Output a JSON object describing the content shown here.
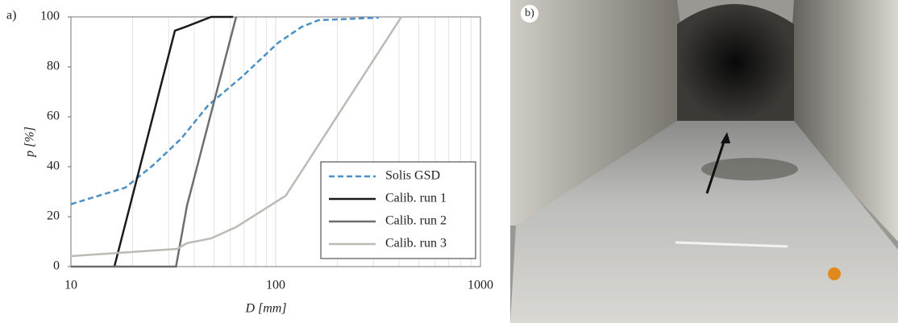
{
  "chart_data": {
    "type": "line",
    "panel_label": "a)",
    "x_label": "D [mm]",
    "y_label": "p [%]",
    "x_scale": "log",
    "xlim": [
      10,
      1000
    ],
    "xticks": [
      10,
      100,
      1000
    ],
    "x_minor_ticks": [
      20,
      30,
      40,
      50,
      60,
      70,
      80,
      90,
      200,
      300,
      400,
      500,
      600,
      700,
      800,
      900
    ],
    "ylim": [
      0,
      100
    ],
    "yticks": [
      0,
      20,
      40,
      60,
      80,
      100
    ],
    "grid": true,
    "legend": "lower right",
    "series": [
      {
        "name": "Solis GSD",
        "color": "#4a8fc7",
        "dashed": true,
        "x": [
          10,
          18.4,
          25.2,
          34.6,
          46.7,
          68.4,
          103,
          134,
          162,
          319
        ],
        "values": [
          25,
          31.6,
          40.6,
          51.3,
          64.5,
          76,
          89.7,
          96,
          98.7,
          99.7
        ]
      },
      {
        "name": "Calib. run 1",
        "color": "#1a1a1a",
        "dashed": false,
        "x": [
          16.3,
          32.2,
          36.2,
          48.4,
          62
        ],
        "values": [
          0,
          94.5,
          96,
          100,
          100
        ]
      },
      {
        "name": "Calib. run 2",
        "color": "#6e6e6e",
        "dashed": false,
        "x": [
          10,
          32.6,
          36.9,
          64.1
        ],
        "values": [
          0,
          0,
          24.5,
          100
        ]
      },
      {
        "name": "Calib. run 3",
        "color": "#bdbab5",
        "dashed": false,
        "x": [
          10,
          33,
          36.9,
          48.4,
          64,
          112,
          411
        ],
        "values": [
          4.2,
          7.1,
          9.4,
          11.3,
          15.8,
          28.4,
          100
        ]
      }
    ]
  },
  "photo": {
    "panel_label": "b)"
  }
}
